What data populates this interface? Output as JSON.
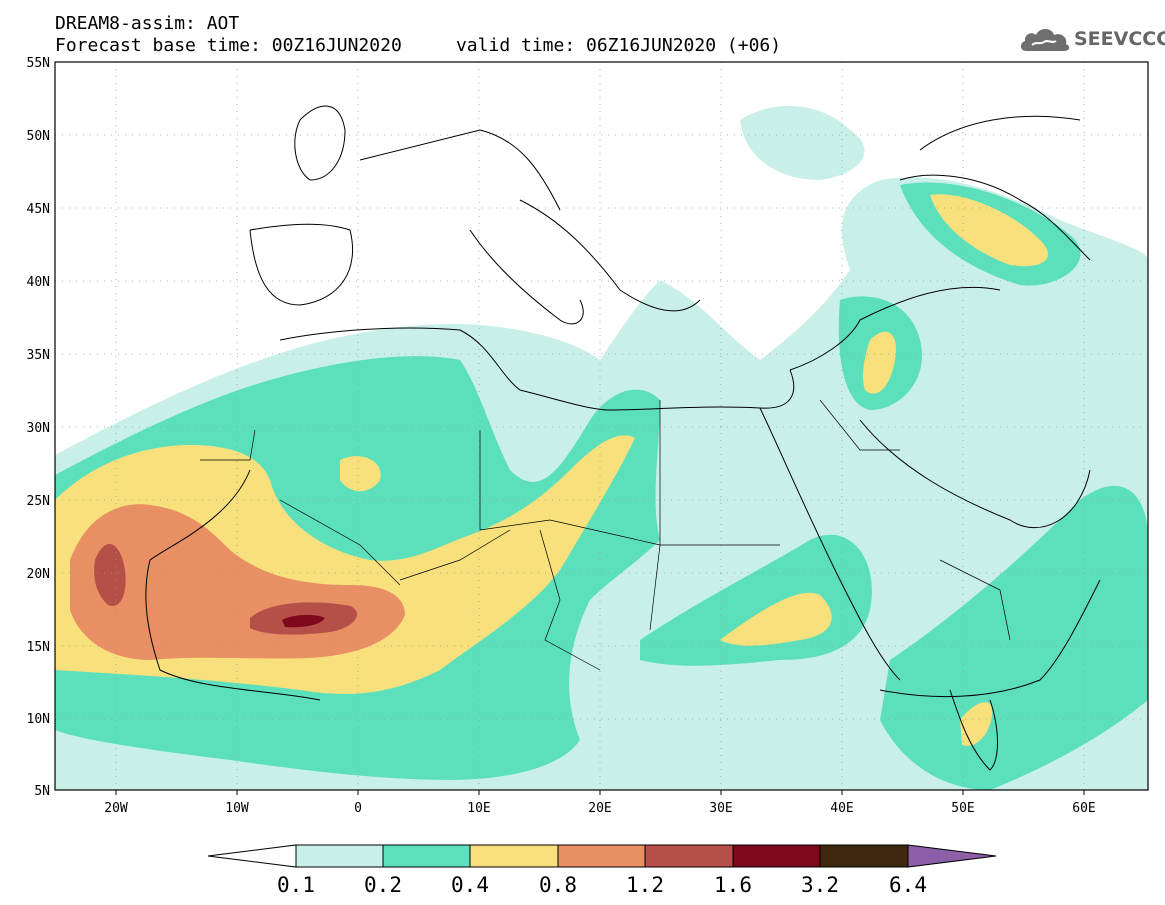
{
  "header": {
    "line1": "DREAM8-assim: AOT",
    "line2": "Forecast base time: 00Z16JUN2020     valid time: 06Z16JUN2020 (+06)"
  },
  "logo": {
    "text": "SEEVCCC",
    "icon": "cloud-icon"
  },
  "map": {
    "lon_range": [
      -25,
      65
    ],
    "lat_range": [
      5,
      55
    ],
    "lat_ticks": [
      "5N",
      "10N",
      "15N",
      "20N",
      "25N",
      "30N",
      "35N",
      "40N",
      "45N",
      "50N",
      "55N"
    ],
    "lon_ticks": [
      "20W",
      "10W",
      "0",
      "10E",
      "20E",
      "30E",
      "40E",
      "50E",
      "60E"
    ]
  },
  "colorbar": {
    "colors": [
      "#ffffff",
      "#c8f0e8",
      "#5ce0bc",
      "#f8e07c",
      "#e89064",
      "#b45048",
      "#80081c",
      "#402810",
      "#8c60a8"
    ],
    "labels": [
      "0.1",
      "0.2",
      "0.4",
      "0.8",
      "1.2",
      "1.6",
      "3.2",
      "6.4"
    ]
  }
}
